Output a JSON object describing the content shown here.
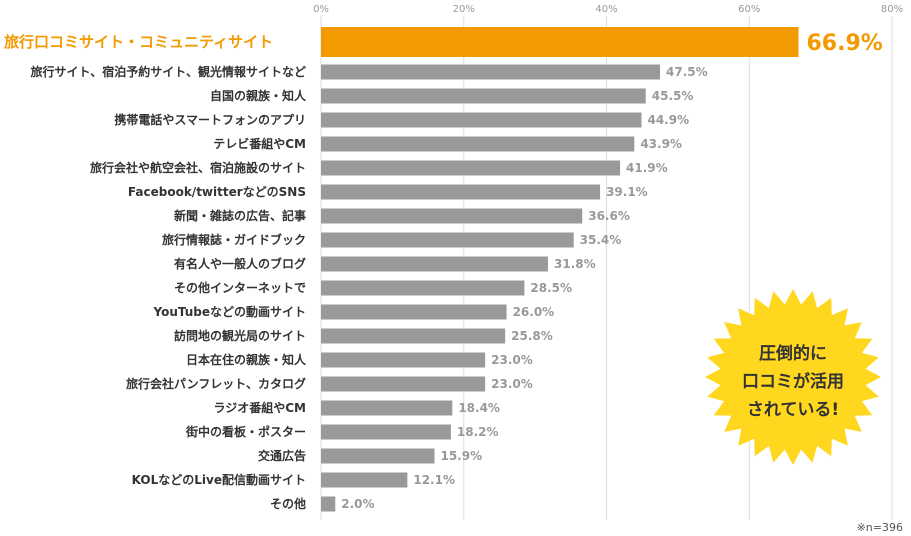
{
  "chart_data": {
    "type": "bar",
    "orientation": "horizontal",
    "categories": [
      "旅行口コミサイト・コミュニティサイト",
      "旅行サイト、宿泊予約サイト、観光情報サイトなど",
      "自国の親族・知人",
      "携帯電話やスマートフォンのアプリ",
      "テレビ番組やCM",
      "旅行会社や航空会社、宿泊施設のサイト",
      "Facebook/twitterなどのSNS",
      "新聞・雑誌の広告、記事",
      "旅行情報誌・ガイドブック",
      "有名人や一般人のブログ",
      "その他インターネットで",
      "YouTubeなどの動画サイト",
      "訪問地の観光局のサイト",
      "日本在住の親族・知人",
      "旅行会社パンフレット、カタログ",
      "ラジオ番組やCM",
      "街中の看板・ポスター",
      "交通広告",
      "KOLなどのLive配信動画サイト",
      "その他"
    ],
    "values": [
      66.9,
      47.5,
      45.5,
      44.9,
      43.9,
      41.9,
      39.1,
      36.6,
      35.4,
      31.8,
      28.5,
      26.0,
      25.8,
      23.0,
      23.0,
      18.4,
      18.2,
      15.9,
      12.1,
      2.0
    ],
    "value_labels": [
      "66.9%",
      "47.5%",
      "45.5%",
      "44.9%",
      "43.9%",
      "41.9%",
      "39.1%",
      "36.6%",
      "35.4%",
      "31.8%",
      "28.5%",
      "26.0%",
      "25.8%",
      "23.0%",
      "23.0%",
      "18.4%",
      "18.2%",
      "15.9%",
      "12.1%",
      "2.0%"
    ],
    "xlim": [
      0,
      80
    ],
    "ticks": [
      "0%",
      "20%",
      "40%",
      "60%",
      "80%"
    ],
    "grid": true,
    "highlight_index": 0,
    "colors": {
      "highlight": "#f39a00",
      "bar": "#999999",
      "grid": "#dddddd",
      "burst": "#ffd71f"
    }
  },
  "callout": {
    "lines": [
      "圧倒的に",
      "口コミが活用",
      "されている!"
    ]
  },
  "note": "※n=396"
}
